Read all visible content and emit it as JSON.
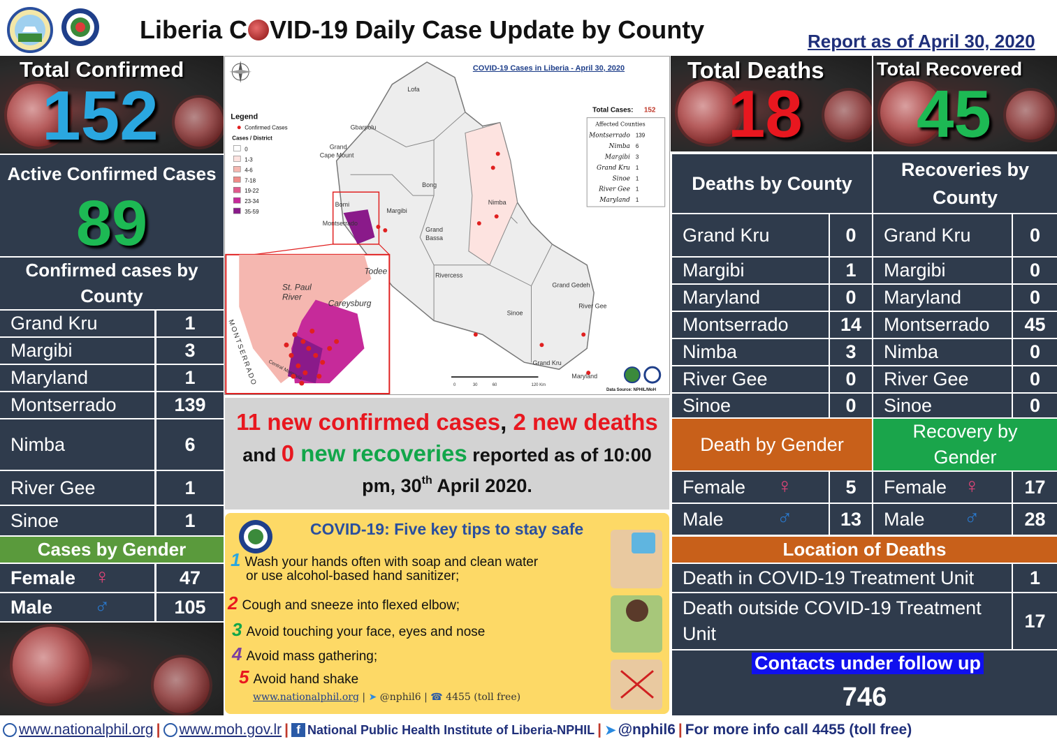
{
  "header": {
    "title_pre": "Liberia C",
    "title_post": "VID-19 Daily Case Update by County",
    "report_date": "Report as of April 30, 2020"
  },
  "totals": {
    "confirmed_label": "Total Confirmed",
    "confirmed_value": "152",
    "deaths_label": "Total Deaths",
    "deaths_value": "18",
    "recovered_label": "Total Recovered",
    "recovered_value": "45"
  },
  "colors": {
    "confirmed": "#2aa7e0",
    "deaths": "#e8171f",
    "recovered": "#1db954",
    "navy": "#2f3b4c",
    "green_header": "#5a9a3c",
    "orange_header": "#c8601a",
    "bright_green": "#1aa54b"
  },
  "active": {
    "label": "Active Confirmed Cases",
    "value": "89"
  },
  "confirmed_by_county": {
    "title": "Confirmed cases by County",
    "rows": [
      {
        "county": "Grand Kru",
        "value": "1"
      },
      {
        "county": "Margibi",
        "value": "3"
      },
      {
        "county": "Maryland",
        "value": "1"
      },
      {
        "county": "Montserrado",
        "value": "139"
      },
      {
        "county": "Nimba",
        "value": "6"
      },
      {
        "county": "River Gee",
        "value": "1"
      },
      {
        "county": "Sinoe",
        "value": "1"
      }
    ]
  },
  "cases_by_gender": {
    "title": "Cases by Gender",
    "female_label": "Female",
    "female_value": "47",
    "male_label": "Male",
    "male_value": "105"
  },
  "deaths_by_county": {
    "title": "Deaths by County",
    "rows": [
      {
        "county": "Grand Kru",
        "value": "0"
      },
      {
        "county": "Margibi",
        "value": "1"
      },
      {
        "county": "Maryland",
        "value": "0"
      },
      {
        "county": "Montserrado",
        "value": "14"
      },
      {
        "county": "Nimba",
        "value": "3"
      },
      {
        "county": "River Gee",
        "value": "0"
      },
      {
        "county": "Sinoe",
        "value": "0"
      }
    ]
  },
  "recoveries_by_county": {
    "title": "Recoveries by County",
    "rows": [
      {
        "county": "Grand Kru",
        "value": "0"
      },
      {
        "county": "Margibi",
        "value": "0"
      },
      {
        "county": "Maryland",
        "value": "0"
      },
      {
        "county": "Montserrado",
        "value": "45"
      },
      {
        "county": "Nimba",
        "value": "0"
      },
      {
        "county": "River Gee",
        "value": "0"
      },
      {
        "county": "Sinoe",
        "value": "0"
      }
    ]
  },
  "death_by_gender": {
    "title": "Death by Gender",
    "female_label": "Female",
    "female_value": "5",
    "male_label": "Male",
    "male_value": "13"
  },
  "recovery_by_gender": {
    "title": "Recovery by Gender",
    "female_label": "Female",
    "female_value": "17",
    "male_label": "Male",
    "male_value": "28"
  },
  "location_of_deaths": {
    "title": "Location of Deaths",
    "in_unit_label": "Death in COVID-19 Treatment Unit",
    "in_unit_value": "1",
    "outside_unit_label": "Death outside COVID-19 Treatment Unit",
    "outside_unit_value": "17"
  },
  "contacts": {
    "label": "Contacts under follow up",
    "value": "746"
  },
  "notice": {
    "part1": "11 new confirmed cases",
    "comma": ", ",
    "part2": "2 new deaths",
    "and1": " and ",
    "part3": "0",
    "part4": " new recoveries",
    "part5": " reported as of 10:00 pm, 30",
    "sup": "th",
    "part6": " April 2020."
  },
  "map": {
    "title": "COVID-19 Cases in Liberia - April 30, 2020",
    "legend_title": "Legend",
    "legend_confirmed": "Confirmed Cases",
    "legend_sub": "Cases / District",
    "legend_bins": [
      "0",
      "1-3",
      "4-6",
      "7-18",
      "19-22",
      "23-34",
      "35-59"
    ],
    "legend_colors": [
      "#ffffff",
      "#fde3e0",
      "#f5b7b0",
      "#ef8b88",
      "#e05a8c",
      "#c62a9a",
      "#8a1a8a"
    ],
    "total_cases_label": "Total Cases:",
    "total_cases_value": "152",
    "affected_title": "Affected Counties",
    "affected": [
      {
        "county": "Montserrado",
        "value": "139"
      },
      {
        "county": "Nimba",
        "value": "6"
      },
      {
        "county": "Margibi",
        "value": "3"
      },
      {
        "county": "Grand Kru",
        "value": "1"
      },
      {
        "county": "Sinoe",
        "value": "1"
      },
      {
        "county": "River Gee",
        "value": "1"
      },
      {
        "county": "Maryland",
        "value": "1"
      }
    ],
    "county_labels": [
      "Lofa",
      "Gbarpolu",
      "Grand Cape Mount",
      "Bomi",
      "Montserrado",
      "Bong",
      "Margibi",
      "Nimba",
      "Grand Bassa",
      "Rivercess",
      "Grand Gedeh",
      "River Gee",
      "Sinoe",
      "Grand Kru",
      "Maryland"
    ],
    "inset_labels": [
      "Todee",
      "St. Paul River",
      "Careysburg",
      "MONTSERRADO",
      "Central Monrovia"
    ],
    "data_source": "Data Source: NPHIL/MoH",
    "scale": [
      "0",
      "30",
      "60",
      "120 Km"
    ]
  },
  "tips": {
    "title": "COVID-19: Five key tips to stay safe",
    "items": [
      "Wash your hands often with soap and clean water",
      "or use alcohol-based hand sanitizer;",
      "Cough and sneeze into flexed elbow;",
      "Avoid touching your face, eyes and nose",
      "Avoid mass gathering;",
      "Avoid hand shake"
    ],
    "numbers": [
      "1",
      "2",
      "3",
      "4",
      "5"
    ],
    "footer_site": "www.nationalphil.org",
    "footer_twitter": "@nphil6",
    "footer_phone": "4455 (toll free)"
  },
  "footer": {
    "site1": "www.nationalphil.org",
    "site2": "www.moh.gov.lr",
    "facebook": "National Public Health Institute of Liberia-NPHIL",
    "twitter": "@nphil6",
    "info": "For more info call 4455 (toll free)"
  }
}
